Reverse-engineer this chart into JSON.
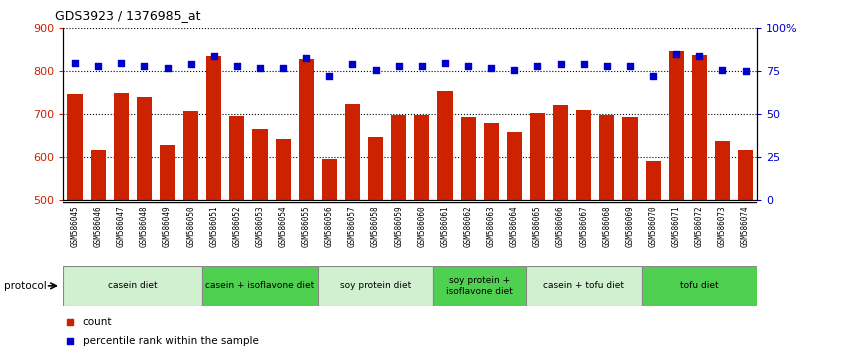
{
  "title": "GDS3923 / 1376985_at",
  "samples": [
    "GSM586045",
    "GSM586046",
    "GSM586047",
    "GSM586048",
    "GSM586049",
    "GSM586050",
    "GSM586051",
    "GSM586052",
    "GSM586053",
    "GSM586054",
    "GSM586055",
    "GSM586056",
    "GSM586057",
    "GSM586058",
    "GSM586059",
    "GSM586060",
    "GSM586061",
    "GSM586062",
    "GSM586063",
    "GSM586064",
    "GSM586065",
    "GSM586066",
    "GSM586067",
    "GSM586068",
    "GSM586069",
    "GSM586070",
    "GSM586071",
    "GSM586072",
    "GSM586073",
    "GSM586074"
  ],
  "counts": [
    748,
    617,
    749,
    741,
    628,
    708,
    836,
    696,
    666,
    641,
    828,
    596,
    724,
    647,
    697,
    697,
    754,
    693,
    680,
    659,
    703,
    722,
    710,
    697,
    694,
    591,
    848,
    839,
    637,
    617
  ],
  "percentile_ranks": [
    80,
    78,
    80,
    78,
    77,
    79,
    84,
    78,
    77,
    77,
    83,
    72,
    79,
    76,
    78,
    78,
    80,
    78,
    77,
    76,
    78,
    79,
    79,
    78,
    78,
    72,
    85,
    84,
    76,
    75
  ],
  "groups": [
    {
      "label": "casein diet",
      "start": 0,
      "end": 5,
      "color": "#d0f0d0"
    },
    {
      "label": "casein + isoflavone diet",
      "start": 6,
      "end": 10,
      "color": "#50d050"
    },
    {
      "label": "soy protein diet",
      "start": 11,
      "end": 15,
      "color": "#d0f0d0"
    },
    {
      "label": "soy protein +\nisoflavone diet",
      "start": 16,
      "end": 19,
      "color": "#50d050"
    },
    {
      "label": "casein + tofu diet",
      "start": 20,
      "end": 24,
      "color": "#d0f0d0"
    },
    {
      "label": "tofu diet",
      "start": 25,
      "end": 29,
      "color": "#50d050"
    }
  ],
  "ylim": [
    500,
    900
  ],
  "yticks": [
    500,
    600,
    700,
    800,
    900
  ],
  "y2lim": [
    0,
    100
  ],
  "y2ticks": [
    0,
    25,
    50,
    75,
    100
  ],
  "y2ticklabels": [
    "0",
    "25",
    "50",
    "75",
    "100%"
  ],
  "bar_color": "#cc2200",
  "dot_color": "#0000cc",
  "grid_color": "#555555",
  "plot_bg": "#ffffff",
  "xlabel_bg": "#d8d8d8",
  "left_label_color": "#cc2200",
  "right_label_color": "#0000cc"
}
